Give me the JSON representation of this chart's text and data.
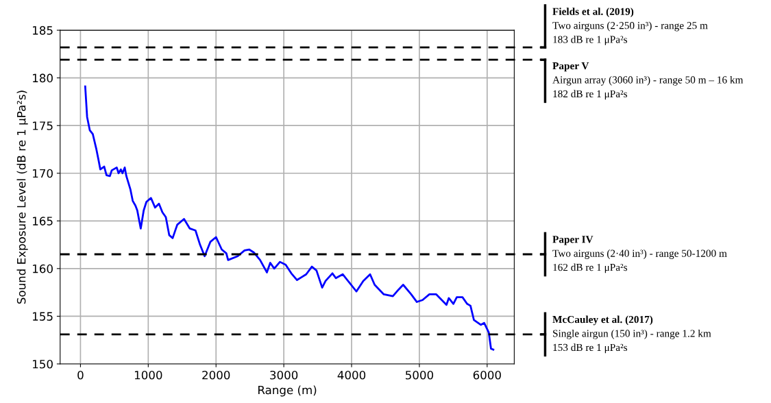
{
  "chart_data": {
    "type": "line",
    "xlabel": "Range (m)",
    "ylabel": "Sound Exposure Level (dB re 1 μPa²s)",
    "xlim": [
      -300,
      6400
    ],
    "xticks": [
      0,
      1000,
      2000,
      3000,
      4000,
      5000,
      6000
    ],
    "ylim": [
      150,
      185
    ],
    "yticks": [
      150,
      155,
      160,
      165,
      170,
      175,
      180,
      185
    ],
    "grid": true,
    "legend": false,
    "series": [
      {
        "color": "#0000ff",
        "line_style": "solid",
        "x": [
          70,
          98,
          138,
          182,
          232,
          266,
          293,
          350,
          384,
          434,
          461,
          535,
          562,
          596,
          620,
          653,
          677,
          737,
          771,
          811,
          838,
          889,
          933,
          973,
          1040,
          1101,
          1158,
          1209,
          1259,
          1310,
          1360,
          1428,
          1528,
          1613,
          1697,
          1764,
          1832,
          1916,
          2000,
          2084,
          2152,
          2178,
          2320,
          2421,
          2488,
          2556,
          2650,
          2750,
          2800,
          2859,
          2943,
          3027,
          3111,
          3195,
          3263,
          3330,
          3414,
          3482,
          3566,
          3616,
          3717,
          3768,
          3869,
          3970,
          4071,
          4172,
          4273,
          4340,
          4475,
          4609,
          4694,
          4761,
          4879,
          4963,
          5047,
          5148,
          5249,
          5400,
          5434,
          5502,
          5552,
          5636,
          5704,
          5754,
          5805,
          5906,
          5956,
          6024,
          6057,
          6091
        ],
        "values": [
          179.1,
          175.9,
          174.5,
          174.1,
          172.6,
          171.4,
          170.4,
          170.7,
          169.8,
          169.7,
          170.3,
          170.6,
          170.0,
          170.4,
          170.0,
          170.6,
          169.7,
          168.3,
          167.1,
          166.6,
          166.1,
          164.2,
          166.1,
          167.0,
          167.4,
          166.4,
          166.8,
          165.9,
          165.4,
          163.5,
          163.2,
          164.6,
          165.2,
          164.2,
          164.0,
          162.5,
          161.3,
          162.8,
          163.3,
          162.0,
          161.6,
          160.9,
          161.3,
          161.9,
          162.0,
          161.7,
          160.9,
          159.6,
          160.6,
          160.0,
          160.7,
          160.4,
          159.5,
          158.8,
          159.1,
          159.4,
          160.2,
          159.8,
          158.0,
          158.7,
          159.5,
          159.0,
          159.4,
          158.5,
          157.6,
          158.7,
          159.4,
          158.3,
          157.3,
          157.1,
          157.8,
          158.3,
          157.3,
          156.5,
          156.7,
          157.3,
          157.3,
          156.2,
          156.9,
          156.3,
          157.0,
          157.0,
          156.3,
          156.1,
          154.6,
          154.1,
          154.3,
          153.3,
          151.6,
          151.5
        ]
      }
    ],
    "ref_lines": [
      {
        "axis": "y",
        "value": 183.2,
        "color": "#000000",
        "line_style": "dashed",
        "label": "Fields et al. (2019)\nTwo airguns (2·250 in³) - range 25 m\n183 dB re 1 μPa²s"
      },
      {
        "axis": "y",
        "value": 181.9,
        "color": "#000000",
        "line_style": "dashed",
        "label": "Paper V\nAirgun array (3060 in³) - range 50 m – 16 km\n182 dB re 1 μPa²s"
      },
      {
        "axis": "y",
        "value": 161.5,
        "color": "#000000",
        "line_style": "dashed",
        "label": "Paper IV\nTwo airguns (2·40 in³) - range 50-1200 m\n162 dB re 1 μPa²s"
      },
      {
        "axis": "y",
        "value": 153.1,
        "color": "#000000",
        "line_style": "dashed",
        "label": "McCauley et al. (2017)\nSingle airgun (150 in³) - range 1.2 km\n153 dB re 1 μPa²s"
      }
    ]
  }
}
